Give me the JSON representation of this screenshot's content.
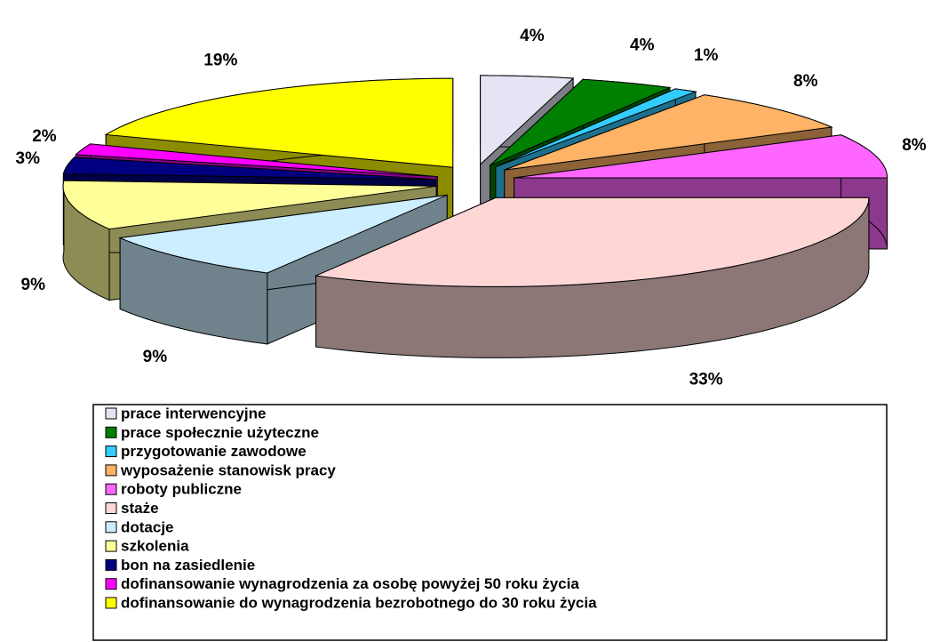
{
  "chart_data": {
    "type": "pie",
    "categories": [
      "prace interwencyjne",
      "prace społecznie użyteczne",
      "przygotowanie zawodowe",
      "wyposażenie stanowisk pracy",
      "roboty publiczne",
      "staże",
      "dotacje",
      "szkolenia",
      "bon na zasiedlenie",
      "dofinansowanie wynagrodzenia za osobę powyżej 50 roku życia",
      "dofinansowanie do wynagrodzenia bezrobotnego do 30 roku życia"
    ],
    "values": [
      4,
      4,
      1,
      8,
      8,
      33,
      9,
      9,
      3,
      2,
      19
    ],
    "value_labels": [
      "4%",
      "4%",
      "1%",
      "8%",
      "8%",
      "33%",
      "9%",
      "9%",
      "3%",
      "2%",
      "19%"
    ],
    "colors": [
      "#e4e4f4",
      "#008000",
      "#33ccff",
      "#ffb366",
      "#ff66ff",
      "#ffd6d6",
      "#cceeff",
      "#ffff99",
      "#000080",
      "#ff00ff",
      "#ffff00"
    ],
    "legend": "bottom"
  }
}
